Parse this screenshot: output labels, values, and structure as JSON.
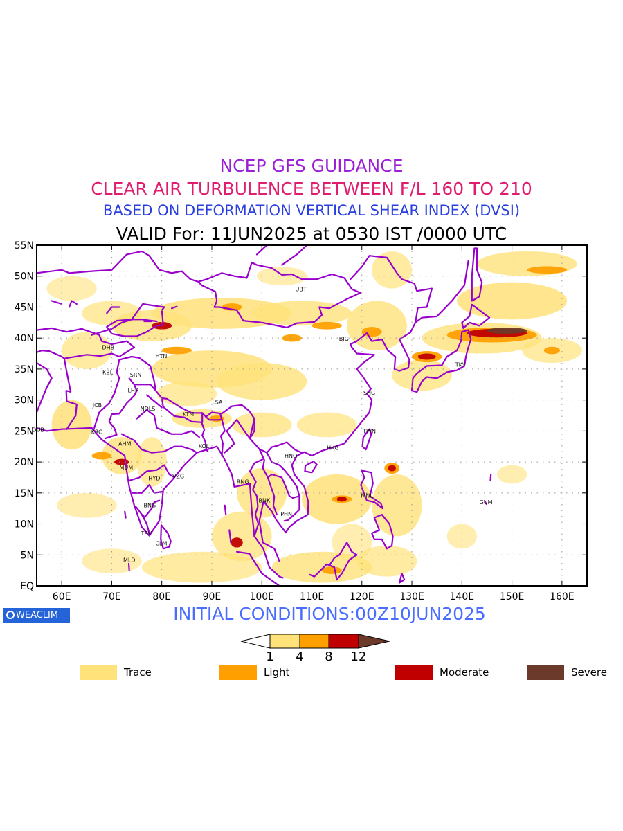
{
  "titles": {
    "line1": "NCEP GFS GUIDANCE",
    "line2": "CLEAR AIR TURBULENCE BETWEEN F/L 160 TO 210",
    "line3": "BASED ON DEFORMATION VERTICAL SHEAR INDEX (DVSI)",
    "line4": "VALID For: 11JUN2025 at 0530 IST /0000 UTC"
  },
  "colors": {
    "line1": "#9a1fd6",
    "line2": "#e01c6e",
    "line3": "#2a3fe0",
    "trace": "#ffe27a",
    "light": "#ffa000",
    "moderate": "#c00000",
    "severe": "#6b3a2a",
    "boundary": "#9900cc",
    "init": "#4a6cff"
  },
  "map": {
    "lon_range": [
      55,
      165
    ],
    "lat_range": [
      0,
      55
    ],
    "lon_ticks": [
      "60E",
      "70E",
      "80E",
      "90E",
      "100E",
      "110E",
      "120E",
      "130E",
      "140E",
      "150E",
      "160E"
    ],
    "lat_ticks": [
      "EQ",
      "5N",
      "10N",
      "15N",
      "20N",
      "25N",
      "30N",
      "35N",
      "40N",
      "45N",
      "50N",
      "55N"
    ],
    "stations": [
      {
        "code": "UBT",
        "lon": 107.8,
        "lat": 47.9
      },
      {
        "code": "BJG",
        "lon": 116.4,
        "lat": 39.9
      },
      {
        "code": "DHB",
        "lon": 69.3,
        "lat": 38.5
      },
      {
        "code": "HTN",
        "lon": 79.9,
        "lat": 37.1
      },
      {
        "code": "KBL",
        "lon": 69.2,
        "lat": 34.5
      },
      {
        "code": "SRN",
        "lon": 74.8,
        "lat": 34.1
      },
      {
        "code": "LHR",
        "lon": 74.3,
        "lat": 31.6
      },
      {
        "code": "TKY",
        "lon": 139.7,
        "lat": 35.7
      },
      {
        "code": "LSA",
        "lon": 91.1,
        "lat": 29.7
      },
      {
        "code": "SHG",
        "lon": 121.5,
        "lat": 31.2
      },
      {
        "code": "JCB",
        "lon": 67.1,
        "lat": 29.2
      },
      {
        "code": "NDLS",
        "lon": 77.2,
        "lat": 28.6
      },
      {
        "code": "KTM",
        "lon": 85.3,
        "lat": 27.7
      },
      {
        "code": "DUB",
        "lon": 55.3,
        "lat": 25.2
      },
      {
        "code": "KRC",
        "lon": 67.0,
        "lat": 24.9
      },
      {
        "code": "TWN",
        "lon": 121.5,
        "lat": 25.0
      },
      {
        "code": "AHM",
        "lon": 72.6,
        "lat": 23.0
      },
      {
        "code": "KOL",
        "lon": 88.4,
        "lat": 22.6
      },
      {
        "code": "HNO",
        "lon": 105.8,
        "lat": 21.0
      },
      {
        "code": "HKG",
        "lon": 114.2,
        "lat": 22.3
      },
      {
        "code": "MUM",
        "lon": 72.9,
        "lat": 19.1
      },
      {
        "code": "HYD",
        "lon": 78.5,
        "lat": 17.4
      },
      {
        "code": "VZG",
        "lon": 83.3,
        "lat": 17.7
      },
      {
        "code": "RNG",
        "lon": 96.2,
        "lat": 16.8
      },
      {
        "code": "BNK",
        "lon": 100.5,
        "lat": 13.8
      },
      {
        "code": "MNL",
        "lon": 121.0,
        "lat": 14.6
      },
      {
        "code": "GUM",
        "lon": 144.8,
        "lat": 13.5
      },
      {
        "code": "BNG",
        "lon": 77.6,
        "lat": 13.0
      },
      {
        "code": "PHN",
        "lon": 104.9,
        "lat": 11.6
      },
      {
        "code": "TRV",
        "lon": 76.9,
        "lat": 8.5
      },
      {
        "code": "CLM",
        "lon": 79.9,
        "lat": 6.9
      },
      {
        "code": "MLD",
        "lon": 73.5,
        "lat": 4.2
      }
    ]
  },
  "initial_conditions": "INITIAL CONDITIONS:00Z10JUN2025",
  "branding": "WEACLIM",
  "colorbar": {
    "ticks": [
      "1",
      "4",
      "8",
      "12"
    ]
  },
  "legend": [
    {
      "label": "Trace",
      "color": "#ffe27a"
    },
    {
      "label": "Light",
      "color": "#ffa000"
    },
    {
      "label": "Moderate",
      "color": "#c00000"
    },
    {
      "label": "Severe",
      "color": "#6b3a2a"
    }
  ]
}
